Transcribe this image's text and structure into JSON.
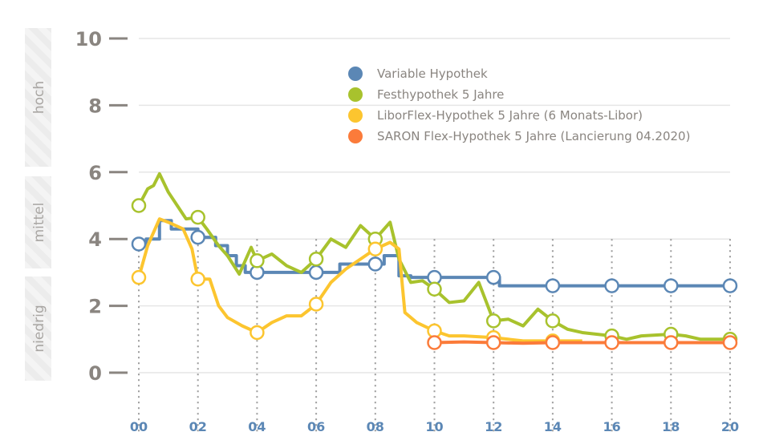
{
  "chart_data": {
    "type": "line",
    "title": "",
    "xlabel": "",
    "ylabel": "",
    "xlim": [
      0,
      20
    ],
    "ylim": [
      0,
      10
    ],
    "x_ticks": [
      "00",
      "02",
      "04",
      "06",
      "08",
      "10",
      "12",
      "14",
      "16",
      "18",
      "20"
    ],
    "y_ticks": [
      "0",
      "2",
      "4",
      "6",
      "8",
      "10"
    ],
    "grid": true,
    "legend_position": "top-right",
    "bands": [
      {
        "label": "hoch",
        "range": [
          6,
          10
        ]
      },
      {
        "label": "mittel",
        "range": [
          3,
          6
        ]
      },
      {
        "label": "niedrig",
        "range": [
          0,
          3
        ]
      }
    ],
    "series": [
      {
        "name": "Variable Hypothek",
        "color": "#5b87b5",
        "step": true,
        "points": [
          [
            0,
            3.85
          ],
          [
            0.25,
            4.0
          ],
          [
            0.7,
            4.55
          ],
          [
            1.1,
            4.3
          ],
          [
            2.0,
            4.05
          ],
          [
            2.6,
            3.8
          ],
          [
            3.0,
            3.5
          ],
          [
            3.3,
            3.2
          ],
          [
            3.6,
            3.0
          ],
          [
            6.8,
            3.25
          ],
          [
            8.3,
            3.5
          ],
          [
            8.8,
            2.9
          ],
          [
            9.2,
            2.85
          ],
          [
            12.2,
            2.6
          ],
          [
            20,
            2.6
          ]
        ]
      },
      {
        "name": "Festhypothek 5 Jahre",
        "color": "#a8c22d",
        "points": [
          [
            0,
            5.0
          ],
          [
            0.3,
            5.5
          ],
          [
            0.5,
            5.6
          ],
          [
            0.7,
            5.95
          ],
          [
            1.0,
            5.4
          ],
          [
            1.3,
            5.0
          ],
          [
            1.6,
            4.6
          ],
          [
            2.0,
            4.65
          ],
          [
            2.3,
            4.3
          ],
          [
            2.7,
            3.8
          ],
          [
            3.0,
            3.5
          ],
          [
            3.4,
            2.95
          ],
          [
            3.8,
            3.75
          ],
          [
            4.0,
            3.35
          ],
          [
            4.5,
            3.55
          ],
          [
            5.0,
            3.2
          ],
          [
            5.5,
            3.0
          ],
          [
            6.0,
            3.4
          ],
          [
            6.5,
            4.0
          ],
          [
            7.0,
            3.75
          ],
          [
            7.5,
            4.4
          ],
          [
            8.0,
            4.0
          ],
          [
            8.5,
            4.5
          ],
          [
            8.8,
            3.4
          ],
          [
            9.2,
            2.7
          ],
          [
            9.6,
            2.75
          ],
          [
            10.0,
            2.5
          ],
          [
            10.5,
            2.1
          ],
          [
            11.0,
            2.15
          ],
          [
            11.5,
            2.7
          ],
          [
            12.0,
            1.55
          ],
          [
            12.5,
            1.6
          ],
          [
            13.0,
            1.4
          ],
          [
            13.5,
            1.9
          ],
          [
            14.0,
            1.55
          ],
          [
            14.5,
            1.3
          ],
          [
            15.0,
            1.2
          ],
          [
            16.0,
            1.1
          ],
          [
            16.5,
            1.0
          ],
          [
            17.0,
            1.1
          ],
          [
            18.0,
            1.15
          ],
          [
            18.5,
            1.1
          ],
          [
            19.0,
            1.0
          ],
          [
            20.0,
            1.0
          ]
        ]
      },
      {
        "name": "LiborFlex-Hypothek 5 Jahre (6 Monats-Libor)",
        "color": "#fcc52f",
        "points": [
          [
            0,
            2.85
          ],
          [
            0.3,
            3.8
          ],
          [
            0.7,
            4.6
          ],
          [
            1.0,
            4.5
          ],
          [
            1.5,
            4.3
          ],
          [
            1.8,
            3.7
          ],
          [
            2.0,
            2.8
          ],
          [
            2.4,
            2.8
          ],
          [
            2.7,
            2.0
          ],
          [
            3.0,
            1.65
          ],
          [
            3.5,
            1.4
          ],
          [
            4.0,
            1.2
          ],
          [
            4.5,
            1.5
          ],
          [
            5.0,
            1.7
          ],
          [
            5.5,
            1.7
          ],
          [
            6.0,
            2.05
          ],
          [
            6.5,
            2.7
          ],
          [
            7.0,
            3.1
          ],
          [
            7.5,
            3.4
          ],
          [
            8.0,
            3.7
          ],
          [
            8.5,
            3.9
          ],
          [
            8.8,
            3.7
          ],
          [
            9.0,
            1.8
          ],
          [
            9.4,
            1.5
          ],
          [
            10.0,
            1.25
          ],
          [
            10.5,
            1.1
          ],
          [
            11.0,
            1.1
          ],
          [
            12.0,
            1.05
          ],
          [
            13.0,
            0.95
          ],
          [
            14.0,
            0.95
          ],
          [
            15.0,
            0.95
          ]
        ]
      },
      {
        "name": "SARON Flex-Hypothek 5 Jahre (Lancierung 04.2020)",
        "color": "#fb7b3a",
        "points": [
          [
            10,
            0.9
          ],
          [
            11,
            0.92
          ],
          [
            12,
            0.9
          ],
          [
            13,
            0.88
          ],
          [
            14,
            0.9
          ],
          [
            15,
            0.9
          ],
          [
            16,
            0.9
          ],
          [
            17,
            0.9
          ],
          [
            18,
            0.9
          ],
          [
            19,
            0.9
          ],
          [
            20,
            0.9
          ]
        ]
      }
    ]
  }
}
